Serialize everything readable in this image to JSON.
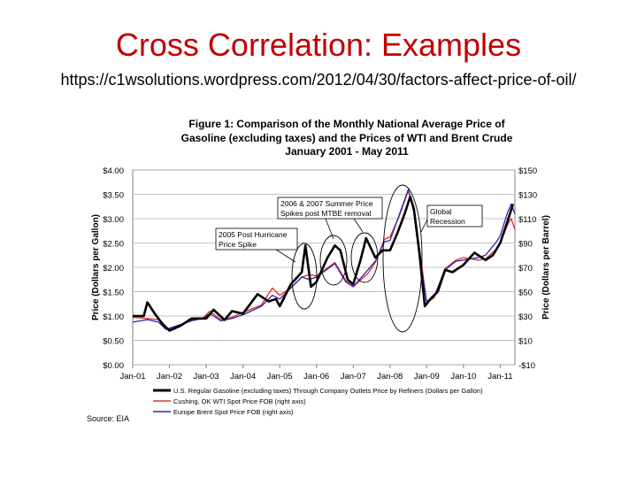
{
  "slide": {
    "title": "Cross Correlation: Examples",
    "url": "https://c1wsolutions.wordpress.com/2012/04/30/factors-affect-price-of-oil/"
  },
  "colors": {
    "gasoline": "#000000",
    "wti": "#e0302a",
    "brent": "#3a1fb0",
    "title": "#c00000"
  },
  "chart_data": {
    "type": "line",
    "title_lines": [
      "Figure 1: Comparison of the Monthly National Average Price of",
      "Gasoline (excluding taxes) and the Prices of WTI and Brent Crude",
      "January 2001 - May 2011"
    ],
    "ylabel_left": "Price (Dollars per Gallon)",
    "ylabel_right": "Price (Dollars per Barrel)",
    "ylim_left": [
      0,
      4
    ],
    "ylim_right": [
      -10,
      150
    ],
    "left_ticks": [
      "$4.00",
      "$3.50",
      "$3.00",
      "$2.50",
      "$2.00",
      "$1.50",
      "$1.00",
      "$0.50",
      "$0.00"
    ],
    "right_ticks": [
      "$150",
      "$130",
      "$110",
      "$90",
      "$70",
      "$50",
      "$30",
      "$10",
      "-$10"
    ],
    "x_ticks": [
      "Jan-01",
      "Jan-02",
      "Jan-03",
      "Jan-04",
      "Jan-05",
      "Jan-06",
      "Jan-07",
      "Jan-08",
      "Jan-09",
      "Jan-10",
      "Jan-11"
    ],
    "x_range": [
      2001.0,
      2011.4
    ],
    "source": "Source: EIA",
    "annotations": {
      "summer": [
        "2006 & 2007 Summer Price",
        "Spikes post MTBE removal"
      ],
      "hurricane": [
        "2005 Post Hurricane",
        "Price Spike"
      ],
      "recession": [
        "Global",
        "Recession"
      ]
    },
    "series": [
      {
        "name": "U.S. Regular Gasoline (excluding taxes) Through Company Outlets Price by Refiners (Dollars per Gallon)",
        "axis": "left",
        "points": [
          [
            2001.0,
            1.0
          ],
          [
            2001.3,
            1.0
          ],
          [
            2001.4,
            1.28
          ],
          [
            2001.6,
            1.05
          ],
          [
            2001.8,
            0.85
          ],
          [
            2002.0,
            0.7
          ],
          [
            2002.3,
            0.8
          ],
          [
            2002.6,
            0.95
          ],
          [
            2003.0,
            0.95
          ],
          [
            2003.2,
            1.13
          ],
          [
            2003.5,
            0.92
          ],
          [
            2003.7,
            1.1
          ],
          [
            2004.0,
            1.05
          ],
          [
            2004.4,
            1.45
          ],
          [
            2004.7,
            1.3
          ],
          [
            2004.9,
            1.35
          ],
          [
            2005.0,
            1.2
          ],
          [
            2005.3,
            1.65
          ],
          [
            2005.6,
            1.9
          ],
          [
            2005.7,
            2.45
          ],
          [
            2005.85,
            1.6
          ],
          [
            2006.0,
            1.7
          ],
          [
            2006.3,
            2.2
          ],
          [
            2006.5,
            2.45
          ],
          [
            2006.65,
            2.35
          ],
          [
            2006.85,
            1.75
          ],
          [
            2007.0,
            1.65
          ],
          [
            2007.2,
            2.15
          ],
          [
            2007.35,
            2.6
          ],
          [
            2007.6,
            2.2
          ],
          [
            2007.8,
            2.35
          ],
          [
            2008.0,
            2.35
          ],
          [
            2008.2,
            2.7
          ],
          [
            2008.4,
            3.1
          ],
          [
            2008.55,
            3.45
          ],
          [
            2008.65,
            3.2
          ],
          [
            2008.8,
            2.3
          ],
          [
            2008.95,
            1.2
          ],
          [
            2009.1,
            1.35
          ],
          [
            2009.3,
            1.5
          ],
          [
            2009.5,
            1.95
          ],
          [
            2009.7,
            1.9
          ],
          [
            2010.0,
            2.05
          ],
          [
            2010.3,
            2.3
          ],
          [
            2010.6,
            2.15
          ],
          [
            2010.8,
            2.25
          ],
          [
            2011.0,
            2.5
          ],
          [
            2011.2,
            2.95
          ],
          [
            2011.35,
            3.3
          ]
        ]
      },
      {
        "name": "Cushing, OK WTI Spot Price FOB (right axis)",
        "axis": "right",
        "points": [
          [
            2001.0,
            29
          ],
          [
            2001.4,
            28
          ],
          [
            2001.7,
            27
          ],
          [
            2001.9,
            19
          ],
          [
            2002.1,
            20
          ],
          [
            2002.6,
            27
          ],
          [
            2002.9,
            28
          ],
          [
            2003.1,
            34
          ],
          [
            2003.4,
            27
          ],
          [
            2003.7,
            29
          ],
          [
            2004.0,
            33
          ],
          [
            2004.5,
            39
          ],
          [
            2004.8,
            53
          ],
          [
            2005.0,
            47
          ],
          [
            2005.3,
            53
          ],
          [
            2005.6,
            62
          ],
          [
            2005.8,
            64
          ],
          [
            2006.0,
            63
          ],
          [
            2006.5,
            74
          ],
          [
            2006.8,
            59
          ],
          [
            2007.0,
            54
          ],
          [
            2007.4,
            65
          ],
          [
            2007.6,
            74
          ],
          [
            2007.85,
            93
          ],
          [
            2008.0,
            95
          ],
          [
            2008.25,
            112
          ],
          [
            2008.5,
            133
          ],
          [
            2008.65,
            120
          ],
          [
            2008.85,
            75
          ],
          [
            2009.0,
            41
          ],
          [
            2009.2,
            45
          ],
          [
            2009.5,
            69
          ],
          [
            2009.8,
            76
          ],
          [
            2010.0,
            78
          ],
          [
            2010.4,
            76
          ],
          [
            2010.6,
            77
          ],
          [
            2010.9,
            85
          ],
          [
            2011.0,
            90
          ],
          [
            2011.2,
            105
          ],
          [
            2011.3,
            110
          ],
          [
            2011.4,
            101
          ]
        ]
      },
      {
        "name": "Europe Brent Spot Price FOB (right axis)",
        "axis": "right",
        "points": [
          [
            2001.0,
            25
          ],
          [
            2001.4,
            27
          ],
          [
            2001.7,
            25
          ],
          [
            2001.9,
            19
          ],
          [
            2002.1,
            21
          ],
          [
            2002.6,
            26
          ],
          [
            2002.9,
            28
          ],
          [
            2003.1,
            32
          ],
          [
            2003.4,
            26
          ],
          [
            2003.7,
            28
          ],
          [
            2004.0,
            31
          ],
          [
            2004.5,
            38
          ],
          [
            2004.8,
            47
          ],
          [
            2005.0,
            44
          ],
          [
            2005.3,
            53
          ],
          [
            2005.6,
            62
          ],
          [
            2005.8,
            60
          ],
          [
            2006.0,
            62
          ],
          [
            2006.5,
            73
          ],
          [
            2006.8,
            58
          ],
          [
            2007.0,
            54
          ],
          [
            2007.4,
            68
          ],
          [
            2007.6,
            75
          ],
          [
            2007.85,
            91
          ],
          [
            2008.0,
            92
          ],
          [
            2008.25,
            113
          ],
          [
            2008.5,
            134
          ],
          [
            2008.65,
            115
          ],
          [
            2008.85,
            70
          ],
          [
            2009.0,
            42
          ],
          [
            2009.2,
            46
          ],
          [
            2009.5,
            68
          ],
          [
            2009.8,
            75
          ],
          [
            2010.0,
            76
          ],
          [
            2010.4,
            78
          ],
          [
            2010.6,
            80
          ],
          [
            2010.9,
            91
          ],
          [
            2011.0,
            96
          ],
          [
            2011.2,
            115
          ],
          [
            2011.3,
            122
          ],
          [
            2011.4,
            114
          ]
        ]
      }
    ]
  }
}
